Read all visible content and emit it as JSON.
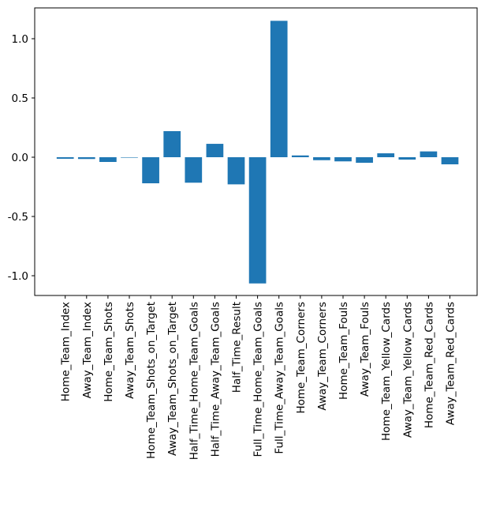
{
  "chart_data": {
    "type": "bar",
    "title": "",
    "xlabel": "",
    "ylabel": "",
    "categories": [
      "Home_Team_Index",
      "Away_Team_Index",
      "Home_Team_Shots",
      "Away_Team_Shots",
      "Home_Team_Shots_on_Target",
      "Away_Team_Shots_on_Target",
      "Half_Time_Home_Team_Goals",
      "Half_Time_Away_Team_Goals",
      "Half_Time_Result",
      "Full_Time_Home_Team_Goals",
      "Full_Time_Away_Team_Goals",
      "Home_Team_Corners",
      "Away_Team_Corners",
      "Home_Team_Fouls",
      "Away_Team_Fouls",
      "Home_Team_Yellow_Cards",
      "Away_Team_Yellow_Cards",
      "Home_Team_Red_Cards",
      "Away_Team_Red_Cards"
    ],
    "values": [
      -0.013,
      -0.015,
      -0.04,
      -0.003,
      -0.22,
      0.22,
      -0.215,
      0.113,
      -0.229,
      -1.065,
      1.151,
      0.015,
      -0.025,
      -0.035,
      -0.047,
      0.033,
      -0.02,
      0.049,
      -0.06
    ],
    "ylim": [
      -1.18,
      1.26
    ],
    "yticks": [
      -1.0,
      -0.5,
      0.0,
      0.5,
      1.0
    ],
    "ytick_labels": [
      "-1.0",
      "-0.5",
      "0.0",
      "0.5",
      "1.0"
    ],
    "grid": false,
    "bar_color": "#1f77b4"
  }
}
